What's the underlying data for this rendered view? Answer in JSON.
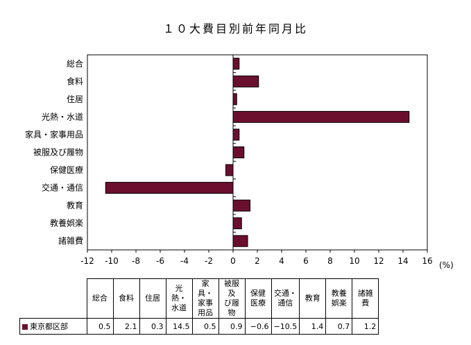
{
  "chart_data": {
    "type": "bar",
    "orientation": "horizontal",
    "title": "１０大費目別前年同月比",
    "unit_label": "(%)",
    "categories": [
      "総合",
      "食料",
      "住居",
      "光熱・水道",
      "家具・家事用品",
      "被服及び履物",
      "保健医療",
      "交通・通信",
      "教育",
      "教養娯楽",
      "諸雑費"
    ],
    "table_headers": [
      "総合",
      "食料",
      "住居",
      "光熱・\n水道",
      "家具・\n家事\n用品",
      "被服及\nび履物",
      "保健\n医療",
      "交通・\n通信",
      "教育",
      "教養\n娯楽",
      "諸雑費"
    ],
    "series": [
      {
        "name": "東京都区部",
        "color": "#6b0f2e",
        "values": [
          0.5,
          2.1,
          0.3,
          14.5,
          0.5,
          0.9,
          -0.6,
          -10.5,
          1.4,
          0.7,
          1.2
        ],
        "display_values": [
          "0.5",
          "2.1",
          "0.3",
          "14.5",
          "0.5",
          "0.9",
          "−0.6",
          "−10.5",
          "1.4",
          "0.7",
          "1.2"
        ]
      }
    ],
    "xlim": [
      -12,
      16
    ],
    "xticks": [
      -12,
      -10,
      -8,
      -6,
      -4,
      -2,
      0,
      2,
      4,
      6,
      8,
      10,
      12,
      14,
      16
    ],
    "grid": false,
    "legend": "in data table"
  }
}
